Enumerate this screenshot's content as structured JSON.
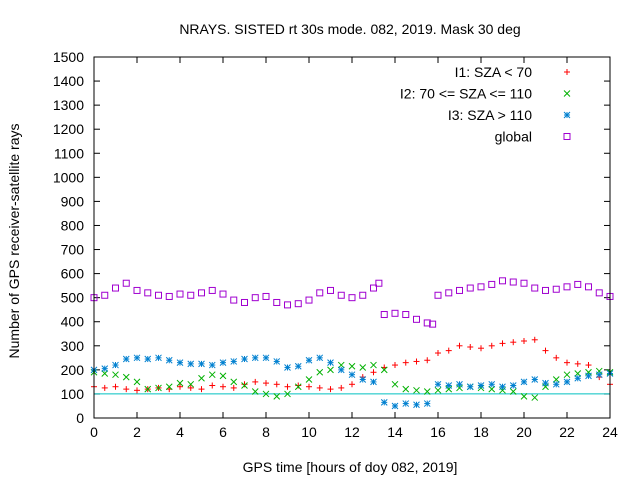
{
  "chart_data": {
    "type": "scatter",
    "title": "NRAYS. SISTED rt 30s mode. 082, 2019. Mask 30 deg",
    "xlabel": "GPS time [hours of doy 082, 2019]",
    "ylabel": "Number of GPS receiver-satellite rays",
    "xlim": [
      0,
      24
    ],
    "ylim": [
      0,
      1500
    ],
    "xticks": [
      "0",
      "2",
      "4",
      "6",
      "8",
      "10",
      "12",
      "14",
      "16",
      "18",
      "20",
      "22",
      "24"
    ],
    "yticks": [
      "0",
      "100",
      "200",
      "300",
      "400",
      "500",
      "600",
      "700",
      "800",
      "900",
      "1000",
      "1100",
      "1200",
      "1300",
      "1400",
      "1500"
    ],
    "legend_position": "top-right",
    "reference_line": {
      "y": 100,
      "color": "#00c0c0"
    },
    "series": [
      {
        "name": "I1: SZA < 70",
        "marker": "+",
        "color": "#ff0000",
        "x": [
          0,
          0.5,
          1,
          1.5,
          2,
          2.5,
          3,
          3.5,
          4,
          4.5,
          5,
          5.5,
          6,
          6.5,
          7,
          7.5,
          8,
          8.5,
          9,
          9.5,
          10,
          10.5,
          11,
          11.5,
          12,
          12.5,
          13,
          13.5,
          14,
          14.5,
          15,
          15.5,
          16,
          16.5,
          17,
          17.5,
          18,
          18.5,
          19,
          19.5,
          20,
          20.5,
          21,
          21.5,
          22,
          22.5,
          23,
          23.5,
          24
        ],
        "values": [
          130,
          125,
          130,
          120,
          115,
          120,
          125,
          120,
          130,
          125,
          120,
          135,
          130,
          125,
          140,
          150,
          145,
          140,
          130,
          135,
          130,
          125,
          120,
          125,
          140,
          170,
          190,
          210,
          220,
          230,
          235,
          240,
          270,
          280,
          300,
          295,
          290,
          300,
          310,
          315,
          320,
          325,
          280,
          250,
          230,
          225,
          220,
          170,
          140
        ]
      },
      {
        "name": "I2: 70 <= SZA <= 110",
        "marker": "x",
        "color": "#00b000",
        "x": [
          0,
          0.5,
          1,
          1.5,
          2,
          2.5,
          3,
          3.5,
          4,
          4.5,
          5,
          5.5,
          6,
          6.5,
          7,
          7.5,
          8,
          8.5,
          9,
          9.5,
          10,
          10.5,
          11,
          11.5,
          12,
          12.5,
          13,
          13.5,
          14,
          14.5,
          15,
          15.5,
          16,
          16.5,
          17,
          17.5,
          18,
          18.5,
          19,
          19.5,
          20,
          20.5,
          21,
          21.5,
          22,
          22.5,
          23,
          23.5,
          24
        ],
        "values": [
          190,
          185,
          180,
          170,
          150,
          120,
          125,
          130,
          145,
          140,
          165,
          180,
          175,
          150,
          135,
          110,
          100,
          90,
          100,
          130,
          160,
          190,
          200,
          220,
          215,
          210,
          220,
          200,
          140,
          120,
          115,
          110,
          115,
          120,
          125,
          130,
          125,
          120,
          115,
          110,
          90,
          85,
          130,
          160,
          180,
          185,
          190,
          195,
          190
        ]
      },
      {
        "name": "I3: SZA > 110",
        "marker": "*",
        "color": "#0080d0",
        "x": [
          0,
          0.5,
          1,
          1.5,
          2,
          2.5,
          3,
          3.5,
          4,
          4.5,
          5,
          5.5,
          6,
          6.5,
          7,
          7.5,
          8,
          8.5,
          9,
          9.5,
          10,
          10.5,
          11,
          11.5,
          12,
          12.5,
          13,
          13.5,
          14,
          14.5,
          15,
          15.5,
          16,
          16.5,
          17,
          17.5,
          18,
          18.5,
          19,
          19.5,
          20,
          20.5,
          21,
          21.5,
          22,
          22.5,
          23,
          23.5,
          24
        ],
        "values": [
          200,
          205,
          220,
          245,
          250,
          245,
          250,
          240,
          230,
          225,
          225,
          220,
          230,
          235,
          245,
          250,
          250,
          235,
          210,
          215,
          240,
          250,
          230,
          200,
          180,
          160,
          150,
          65,
          50,
          60,
          55,
          60,
          140,
          135,
          140,
          130,
          135,
          140,
          130,
          135,
          150,
          160,
          145,
          140,
          150,
          165,
          175,
          180,
          185
        ]
      },
      {
        "name": "global",
        "marker": "square",
        "color": "#a000d0",
        "x": [
          0,
          0.5,
          1,
          1.5,
          2,
          2.5,
          3,
          3.5,
          4,
          4.5,
          5,
          5.5,
          6,
          6.5,
          7,
          7.5,
          8,
          8.5,
          9,
          9.5,
          10,
          10.5,
          11,
          11.5,
          12,
          12.5,
          13,
          13.25,
          13.5,
          14,
          14.5,
          15,
          15.5,
          15.75,
          16,
          16.5,
          17,
          17.5,
          18,
          18.5,
          19,
          19.5,
          20,
          20.5,
          21,
          21.5,
          22,
          22.5,
          23,
          23.5,
          24
        ],
        "values": [
          500,
          510,
          540,
          560,
          530,
          520,
          510,
          505,
          515,
          510,
          520,
          530,
          515,
          490,
          480,
          500,
          505,
          480,
          470,
          475,
          490,
          520,
          530,
          510,
          500,
          510,
          540,
          560,
          430,
          435,
          430,
          410,
          395,
          390,
          510,
          520,
          530,
          540,
          545,
          555,
          570,
          565,
          560,
          540,
          530,
          535,
          545,
          555,
          545,
          520,
          505
        ]
      }
    ]
  }
}
